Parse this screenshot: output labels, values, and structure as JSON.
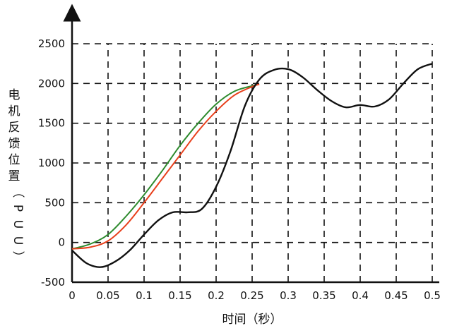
{
  "chart_data": {
    "type": "line",
    "title": "",
    "xlabel": "时间（秒）",
    "ylabel": "电机反馈位置（PUU）",
    "xlim": [
      0,
      0.5
    ],
    "ylim": [
      -500,
      2500
    ],
    "x_ticks": [
      "0",
      "0.05",
      "0.1",
      "0.15",
      "0.2",
      "0.25",
      "0.3",
      "0.35",
      "0.4",
      "0.45",
      "0.5"
    ],
    "y_ticks": [
      "2500",
      "2000",
      "1500",
      "1000",
      "500",
      "0",
      "-500"
    ],
    "grid": true,
    "legend": "none",
    "series": [
      {
        "color": "#2e8b2e",
        "x": [
          0,
          0.025,
          0.05,
          0.075,
          0.1,
          0.125,
          0.15,
          0.175,
          0.2,
          0.225,
          0.25,
          0.255
        ],
        "y": [
          -80,
          -20,
          100,
          330,
          600,
          900,
          1220,
          1500,
          1740,
          1900,
          1970,
          1980
        ]
      },
      {
        "color": "#e8401c",
        "x": [
          0,
          0.025,
          0.05,
          0.075,
          0.1,
          0.125,
          0.15,
          0.175,
          0.2,
          0.225,
          0.25,
          0.26
        ],
        "y": [
          -80,
          -60,
          20,
          220,
          500,
          800,
          1100,
          1400,
          1650,
          1850,
          1960,
          1990
        ]
      },
      {
        "color": "#111111",
        "x": [
          0,
          0.02,
          0.04,
          0.06,
          0.08,
          0.1,
          0.12,
          0.14,
          0.16,
          0.18,
          0.2,
          0.22,
          0.24,
          0.26,
          0.28,
          0.3,
          0.32,
          0.34,
          0.36,
          0.38,
          0.4,
          0.42,
          0.44,
          0.46,
          0.48,
          0.5
        ],
        "y": [
          -100,
          -260,
          -310,
          -240,
          -100,
          100,
          280,
          380,
          380,
          420,
          700,
          1150,
          1720,
          2050,
          2170,
          2180,
          2080,
          1920,
          1780,
          1700,
          1730,
          1710,
          1800,
          2000,
          2180,
          2250
        ]
      }
    ]
  }
}
